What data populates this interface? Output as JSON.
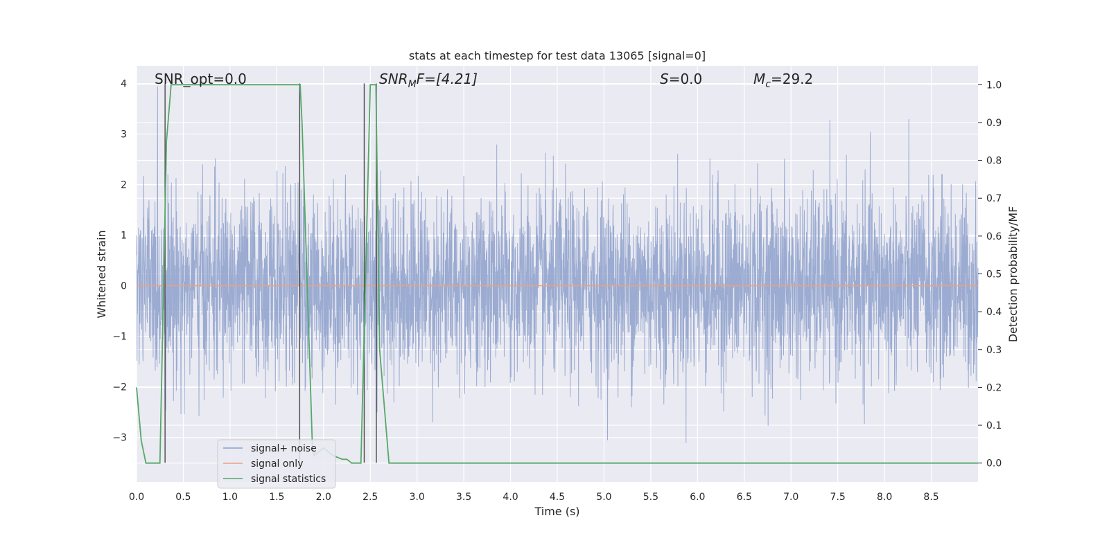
{
  "chart_data": {
    "type": "line",
    "title": "stats at each timestep for test data 13065 [signal=0]",
    "xlabel": "Time (s)",
    "ylabel": "Whitened strain",
    "y2label": "Detection probability/MF",
    "xlim": [
      0.0,
      9.0
    ],
    "ylim": [
      -3.88,
      4.35
    ],
    "y2lim": [
      -0.05,
      1.05
    ],
    "xticks": [
      0.0,
      0.5,
      1.0,
      1.5,
      2.0,
      2.5,
      3.0,
      3.5,
      4.0,
      4.5,
      5.0,
      5.5,
      6.0,
      6.5,
      7.0,
      7.5,
      8.0,
      8.5
    ],
    "xtick_labels": [
      "0.0",
      "0.5",
      "1.0",
      "1.5",
      "2.0",
      "2.5",
      "3.0",
      "3.5",
      "4.0",
      "4.5",
      "5.0",
      "5.5",
      "6.0",
      "6.5",
      "7.0",
      "7.5",
      "8.0",
      "8.5"
    ],
    "yticks": [
      -3,
      -2,
      -1,
      0,
      1,
      2,
      3,
      4
    ],
    "ytick_labels": [
      "−3",
      "−2",
      "−1",
      "0",
      "1",
      "2",
      "3",
      "4"
    ],
    "y2ticks": [
      0.0,
      0.1,
      0.2,
      0.3,
      0.4,
      0.5,
      0.6,
      0.7,
      0.8,
      0.9,
      1.0
    ],
    "y2tick_labels": [
      "0.0",
      "0.1",
      "0.2",
      "0.3",
      "0.4",
      "0.5",
      "0.6",
      "0.7",
      "0.8",
      "0.9",
      "1.0"
    ],
    "annotations": {
      "snr_opt": "SNR_opt=0.0",
      "snr_mf_main": "SNR",
      "snr_mf_sub": "M",
      "snr_mf_tail": "F=[4.21]",
      "s_main": "S",
      "s_tail": "=0.0",
      "mc_main": "M",
      "mc_sub": "c",
      "mc_tail": "=29.2"
    },
    "vertical_lines_x": [
      0.305,
      1.745,
      2.435,
      2.565
    ],
    "vertical_lines_ylim": [
      -3.5,
      4.0
    ],
    "series": [
      {
        "name": "signal+ noise",
        "axis": "left",
        "color": "#8da0cb",
        "description": "whitened noise, approx. Gaussian, std 0.92, range about -3.6 to 4.0",
        "std": 0.92
      },
      {
        "name": "signal only",
        "axis": "left",
        "color": "#e8a282",
        "x": [
          0.0,
          9.0
        ],
        "y": [
          0.0,
          0.0
        ]
      },
      {
        "name": "signal statistics",
        "axis": "right",
        "color": "#55a868",
        "x": [
          0.0,
          0.05,
          0.1,
          0.25,
          0.3,
          0.32,
          0.37,
          1.75,
          1.77,
          1.88,
          1.9,
          2.0,
          2.05,
          2.1,
          2.2,
          2.25,
          2.3,
          2.4,
          2.45,
          2.5,
          2.56,
          2.6,
          2.7,
          9.0
        ],
        "y": [
          0.2,
          0.06,
          0.0,
          0.0,
          0.6,
          0.85,
          1.0,
          1.0,
          0.9,
          0.05,
          0.02,
          0.04,
          0.03,
          0.02,
          0.01,
          0.01,
          0.0,
          0.0,
          0.5,
          1.0,
          1.0,
          0.3,
          0.0,
          0.0
        ]
      }
    ],
    "legend": {
      "placement": "lower-left",
      "entries": [
        "signal+ noise",
        "signal only",
        "signal statistics"
      ]
    }
  }
}
